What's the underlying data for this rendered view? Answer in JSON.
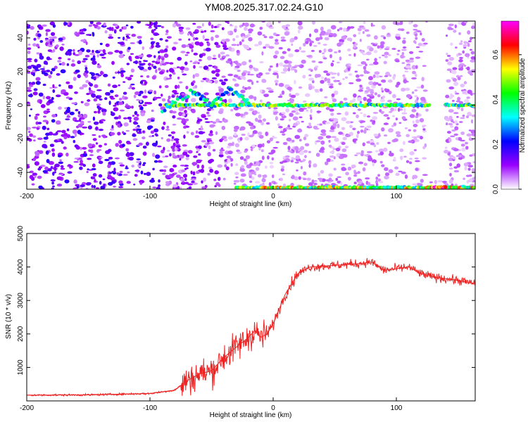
{
  "title": "YM08.2025.317.02.24.G10",
  "colors": {
    "line": "#ee2222",
    "frame": "#000000",
    "background": "#ffffff"
  },
  "chart_data": [
    {
      "type": "heatmap",
      "xlabel": "Height of straight line (km)",
      "ylabel": "Frequency (Hz)",
      "xlim": [
        -200,
        164
      ],
      "ylim": [
        -50,
        50
      ],
      "xticks": [
        -200,
        -100,
        0,
        100
      ],
      "yticks": [
        -40,
        -20,
        0,
        20,
        40
      ],
      "colorbar": {
        "label": "Normalized spectral amplitude",
        "range": [
          0,
          0.75
        ],
        "ticks": [
          0.0,
          0.2,
          0.4,
          0.6
        ],
        "colors": [
          "#ffffff",
          "#9900ff",
          "#0000ff",
          "#00ffff",
          "#00ff00",
          "#ffff00",
          "#ff0000",
          "#ff00ff"
        ]
      },
      "features": [
        {
          "name": "carrier trace",
          "x_start": -88,
          "x_end": 164,
          "frequency": 0,
          "amplitude": 0.45
        },
        {
          "name": "diagonal trace",
          "x": [
            -90,
            -65,
            -50,
            -35,
            -20
          ],
          "frequency": [
            -3,
            8,
            0,
            9,
            2
          ],
          "amplitude": 0.35
        },
        {
          "name": "edge band",
          "x_start": -30,
          "x_end": 164,
          "frequency": -49,
          "amplitude": 0.5
        },
        {
          "name": "peak",
          "x_start": 125,
          "x_end": 140,
          "frequency": -49,
          "amplitude": 0.7
        }
      ]
    },
    {
      "type": "line",
      "xlabel": "Height of straight line (km)",
      "ylabel": "SNR (10 * v/v)",
      "xlim": [
        -200,
        164
      ],
      "ylim": [
        0,
        5000
      ],
      "xticks": [
        -200,
        -100,
        0,
        100
      ],
      "yticks": [
        1000,
        2000,
        3000,
        4000,
        5000
      ],
      "series": [
        {
          "name": "SNR",
          "x": [
            -200,
            -150,
            -100,
            -80,
            -70,
            -60,
            -50,
            -40,
            -30,
            -20,
            -15,
            -10,
            -5,
            0,
            10,
            20,
            30,
            50,
            70,
            80,
            90,
            100,
            110,
            120,
            130,
            140,
            150,
            164
          ],
          "y": [
            170,
            180,
            220,
            320,
            600,
            800,
            900,
            1300,
            1600,
            1900,
            2100,
            1900,
            2000,
            2300,
            3200,
            3800,
            4000,
            4050,
            4100,
            4150,
            3900,
            3950,
            4000,
            3800,
            3700,
            3650,
            3600,
            3500
          ]
        }
      ]
    }
  ]
}
